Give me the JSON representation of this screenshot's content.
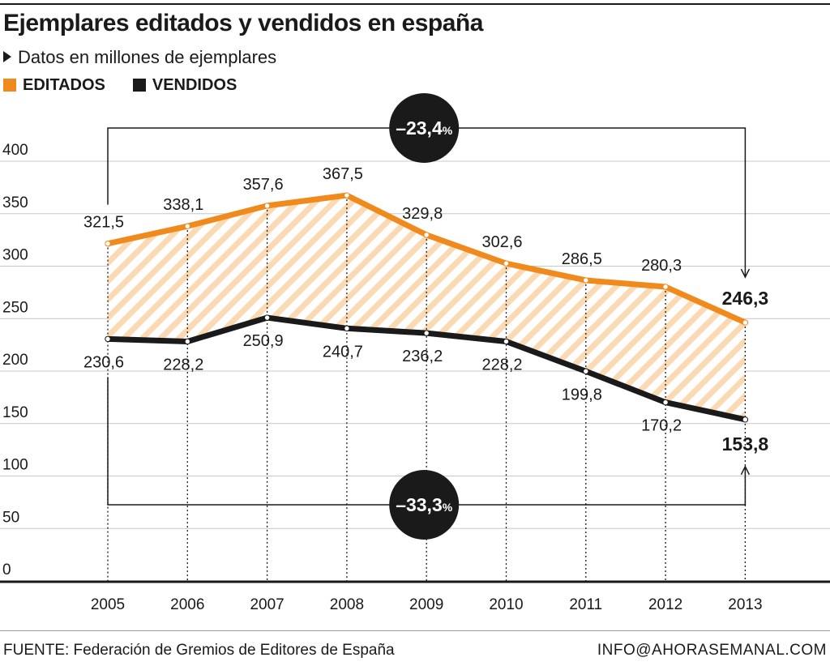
{
  "header": {
    "title": "Ejemplares editados y vendidos en españa",
    "subtitle": "Datos en millones de ejemplares"
  },
  "legend": {
    "items": [
      {
        "label": "EDITADOS",
        "color": "#f08a1c"
      },
      {
        "label": "VENDIDOS",
        "color": "#1a1a1a"
      }
    ]
  },
  "footer": {
    "source": "FUENTE: Federación de Gremios de Editores de España",
    "credit": "INFO@AHORASEMANAL.COM"
  },
  "chart_data": {
    "type": "line",
    "x": [
      "2005",
      "2006",
      "2007",
      "2008",
      "2009",
      "2010",
      "2011",
      "2012",
      "2013"
    ],
    "series": [
      {
        "name": "EDITADOS",
        "color": "#f08a1c",
        "values": [
          321.5,
          338.1,
          357.6,
          367.5,
          329.8,
          302.6,
          286.5,
          280.3,
          246.3
        ],
        "labels": [
          "321,5",
          "338,1",
          "357,6",
          "367,5",
          "329,8",
          "302,6",
          "286,5",
          "280,3",
          "246,3"
        ]
      },
      {
        "name": "VENDIDOS",
        "color": "#1a1a1a",
        "values": [
          230.6,
          228.2,
          250.9,
          240.7,
          236.2,
          228.2,
          199.8,
          170.2,
          153.8
        ],
        "labels": [
          "230,6",
          "228,2",
          "250,9",
          "240,7",
          "236,2",
          "228,2",
          "199,8",
          "170,2",
          "153,8"
        ]
      }
    ],
    "yticks": [
      0,
      50,
      100,
      150,
      200,
      250,
      300,
      350,
      400
    ],
    "ylim": [
      0,
      400
    ],
    "grid": true,
    "legend_position": "top-left",
    "annotations": [
      {
        "series": "EDITADOS",
        "text": "–23,4",
        "unit": "%"
      },
      {
        "series": "VENDIDOS",
        "text": "–33,3",
        "unit": "%"
      }
    ]
  }
}
